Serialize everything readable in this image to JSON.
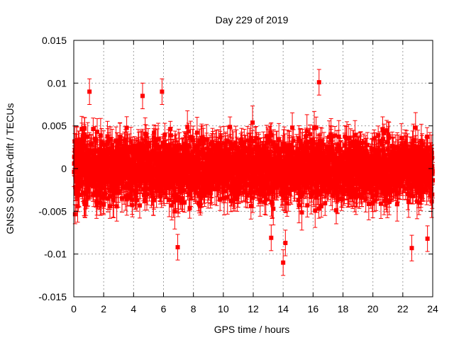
{
  "chart_data": {
    "type": "scatter",
    "title": "Day 229 of 2019",
    "xlabel": "GPS time / hours",
    "ylabel": "GNSS SOLERA-drift / TECUs",
    "xlim": [
      0,
      24
    ],
    "ylim": [
      -0.015,
      0.015
    ],
    "x_ticks": [
      0,
      2,
      4,
      6,
      8,
      10,
      12,
      14,
      16,
      18,
      20,
      22,
      24
    ],
    "y_ticks": [
      -0.015,
      -0.01,
      -0.005,
      0,
      0.005,
      0.01,
      0.015
    ],
    "x_tick_labels": [
      "0",
      "2",
      "4",
      "6",
      "8",
      "10",
      "12",
      "14",
      "16",
      "18",
      "20",
      "22",
      "24"
    ],
    "y_tick_labels": [
      "-0.015",
      "-0.01",
      "-0.005",
      "0",
      "0.005",
      "0.01",
      "0.015"
    ],
    "grid": true,
    "marker_color": "#ff0000",
    "error_bars": true,
    "sampling_interval_hours": 0.0083,
    "typical_error": 0.0015,
    "highlight_points": [
      {
        "x": 1.05,
        "y": 0.009
      },
      {
        "x": 4.6,
        "y": 0.0085
      },
      {
        "x": 5.9,
        "y": 0.009
      },
      {
        "x": 6.95,
        "y": -0.0092
      },
      {
        "x": 13.2,
        "y": -0.0081
      },
      {
        "x": 14.0,
        "y": -0.011
      },
      {
        "x": 14.15,
        "y": -0.0087
      },
      {
        "x": 16.4,
        "y": 0.0101
      },
      {
        "x": 22.6,
        "y": -0.0093
      },
      {
        "x": 23.65,
        "y": -0.0082
      }
    ]
  }
}
